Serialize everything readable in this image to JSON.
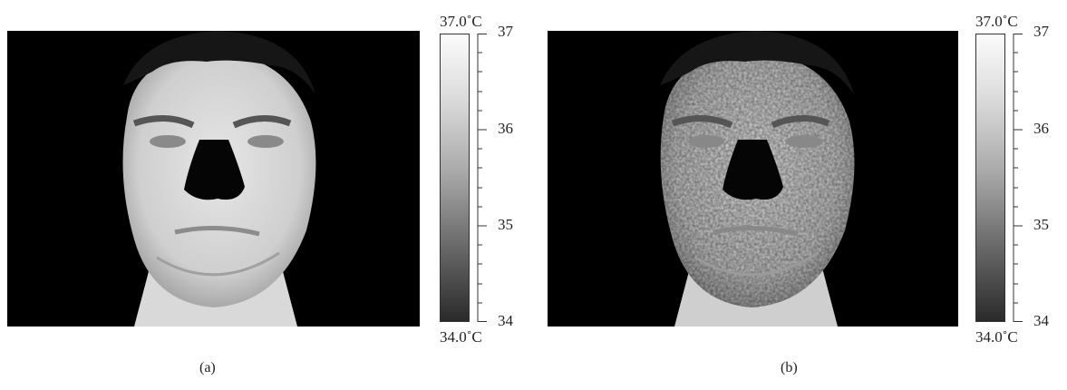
{
  "figure": {
    "panels": [
      {
        "caption": "(a)",
        "scale": {
          "max_label": "37.0˚C",
          "min_label": "34.0˚C",
          "ticks": [
            "37",
            "36",
            "35",
            "34"
          ],
          "range": [
            34,
            37
          ]
        }
      },
      {
        "caption": "(b)",
        "scale": {
          "max_label": "37.0˚C",
          "min_label": "34.0˚C",
          "ticks": [
            "37",
            "36",
            "35",
            "34"
          ],
          "range": [
            34,
            37
          ]
        }
      }
    ]
  }
}
